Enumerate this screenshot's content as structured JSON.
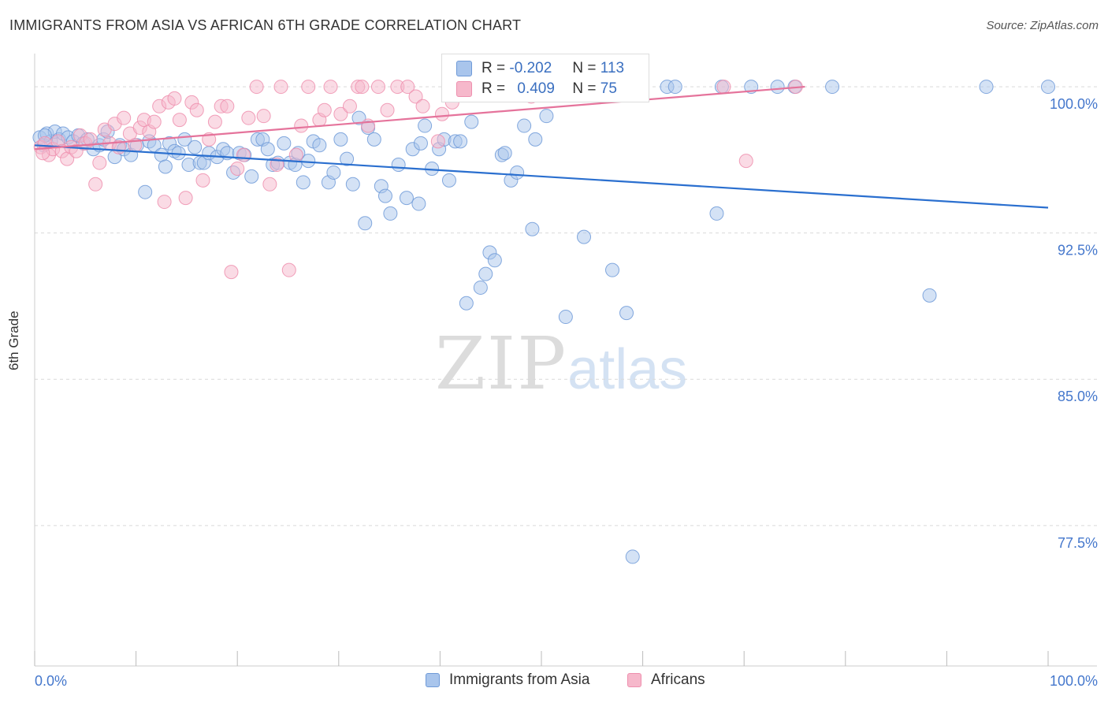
{
  "title": "IMMIGRANTS FROM ASIA VS AFRICAN 6TH GRADE CORRELATION CHART",
  "source": "Source: ZipAtlas.com",
  "watermark": {
    "zip": "ZIP",
    "atlas": "atlas"
  },
  "colors": {
    "asia_fill": "#a9c5ec",
    "asia_stroke": "#6f9ad8",
    "asia_line": "#2a6fcf",
    "african_fill": "#f6b8cb",
    "african_stroke": "#ee8fae",
    "african_line": "#e5739b",
    "tick_label": "#4477cc",
    "grid": "#d9d9d9"
  },
  "legend": {
    "stats": [
      {
        "r_label": "R =",
        "r_value": "-0.202",
        "n_label": "N =",
        "n_value": "113"
      },
      {
        "r_label": "R =",
        "r_value": "0.409",
        "n_label": "N =",
        "n_value": "75"
      }
    ],
    "bottom": [
      "Immigrants from Asia",
      "Africans"
    ]
  },
  "chart_data": {
    "type": "scatter",
    "title": "IMMIGRANTS FROM ASIA VS AFRICAN 6TH GRADE CORRELATION CHART",
    "xlabel": "",
    "ylabel": "6th Grade",
    "xlim": [
      0,
      100
    ],
    "ylim": [
      70.3,
      101.7
    ],
    "x_tick_labels": [
      "0.0%",
      "100.0%"
    ],
    "y_ticks": [
      100.0,
      92.5,
      85.0,
      77.5
    ],
    "y_tick_labels": [
      "100.0%",
      "92.5%",
      "85.0%",
      "77.5%"
    ],
    "grid": "horizontal dashed",
    "series": [
      {
        "name": "Immigrants from Asia",
        "trend": {
          "x": [
            0,
            100
          ],
          "y": [
            97.0,
            93.8
          ]
        },
        "points": [
          [
            0.5,
            97.4
          ],
          [
            0.9,
            97.0
          ],
          [
            1.2,
            97.6
          ],
          [
            1.6,
            97.2
          ],
          [
            2.0,
            97.7
          ],
          [
            2.4,
            97.3
          ],
          [
            2.8,
            97.6
          ],
          [
            3.3,
            97.4
          ],
          [
            3.8,
            97.2
          ],
          [
            4.3,
            97.5
          ],
          [
            4.8,
            97.1
          ],
          [
            5.2,
            97.3
          ],
          [
            5.8,
            96.8
          ],
          [
            6.4,
            97.0
          ],
          [
            6.8,
            97.3
          ],
          [
            7.2,
            97.7
          ],
          [
            7.9,
            96.4
          ],
          [
            8.4,
            97.0
          ],
          [
            8.8,
            96.8
          ],
          [
            9.5,
            96.5
          ],
          [
            10.1,
            97.0
          ],
          [
            10.9,
            94.6
          ],
          [
            11.3,
            97.2
          ],
          [
            11.8,
            97.0
          ],
          [
            12.5,
            96.5
          ],
          [
            12.9,
            95.9
          ],
          [
            13.3,
            97.1
          ],
          [
            13.8,
            96.7
          ],
          [
            14.2,
            96.6
          ],
          [
            14.8,
            97.3
          ],
          [
            15.2,
            96.0
          ],
          [
            15.8,
            96.9
          ],
          [
            16.3,
            96.1
          ],
          [
            16.7,
            96.1
          ],
          [
            17.2,
            96.6
          ],
          [
            18.0,
            96.4
          ],
          [
            18.6,
            96.8
          ],
          [
            19.0,
            96.6
          ],
          [
            19.6,
            95.6
          ],
          [
            20.2,
            96.6
          ],
          [
            20.7,
            96.5
          ],
          [
            21.4,
            95.4
          ],
          [
            22.0,
            97.3
          ],
          [
            22.5,
            97.3
          ],
          [
            23.0,
            96.8
          ],
          [
            23.5,
            96.0
          ],
          [
            24.0,
            96.1
          ],
          [
            24.6,
            97.1
          ],
          [
            25.2,
            96.1
          ],
          [
            25.7,
            96.0
          ],
          [
            26.5,
            95.1
          ],
          [
            27.0,
            96.2
          ],
          [
            27.5,
            97.2
          ],
          [
            28.1,
            97.0
          ],
          [
            29.0,
            95.1
          ],
          [
            29.5,
            95.6
          ],
          [
            30.2,
            97.3
          ],
          [
            30.8,
            96.3
          ],
          [
            31.4,
            95.0
          ],
          [
            32.0,
            98.4
          ],
          [
            32.6,
            93.0
          ],
          [
            32.9,
            97.9
          ],
          [
            33.5,
            97.3
          ],
          [
            34.2,
            94.9
          ],
          [
            34.6,
            94.4
          ],
          [
            35.1,
            93.5
          ],
          [
            35.9,
            96.0
          ],
          [
            36.7,
            94.3
          ],
          [
            37.3,
            96.8
          ],
          [
            37.9,
            94.0
          ],
          [
            38.1,
            97.1
          ],
          [
            38.5,
            98.0
          ],
          [
            39.2,
            95.8
          ],
          [
            39.9,
            96.8
          ],
          [
            40.4,
            97.3
          ],
          [
            40.9,
            95.2
          ],
          [
            41.5,
            97.2
          ],
          [
            42.0,
            97.2
          ],
          [
            42.6,
            88.9
          ],
          [
            43.1,
            98.2
          ],
          [
            44.0,
            89.7
          ],
          [
            44.5,
            90.4
          ],
          [
            44.9,
            91.5
          ],
          [
            45.4,
            91.1
          ],
          [
            46.1,
            96.5
          ],
          [
            46.4,
            96.6
          ],
          [
            47.0,
            95.2
          ],
          [
            47.6,
            95.6
          ],
          [
            48.3,
            98.0
          ],
          [
            49.1,
            92.7
          ],
          [
            49.4,
            97.3
          ],
          [
            50.5,
            98.5
          ],
          [
            52.1,
            99.9
          ],
          [
            52.4,
            88.2
          ],
          [
            53.9,
            99.9
          ],
          [
            54.2,
            92.3
          ],
          [
            56.3,
            99.9
          ],
          [
            57.0,
            90.6
          ],
          [
            58.4,
            88.4
          ],
          [
            59.0,
            75.9
          ],
          [
            62.4,
            100.0
          ],
          [
            63.2,
            100.0
          ],
          [
            67.3,
            93.5
          ],
          [
            67.8,
            100.0
          ],
          [
            70.7,
            100.0
          ],
          [
            73.3,
            100.0
          ],
          [
            75.0,
            100.0
          ],
          [
            78.7,
            100.0
          ],
          [
            88.3,
            89.3
          ],
          [
            93.9,
            100.0
          ],
          [
            100.0,
            100.0
          ],
          [
            1.0,
            97.5
          ],
          [
            26.0,
            96.6
          ]
        ]
      },
      {
        "name": "Africans",
        "trend": {
          "x": [
            0,
            76
          ],
          "y": [
            96.8,
            100.0
          ]
        },
        "points": [
          [
            0.6,
            96.9
          ],
          [
            1.0,
            97.1
          ],
          [
            1.4,
            96.5
          ],
          [
            1.8,
            96.8
          ],
          [
            2.3,
            97.2
          ],
          [
            2.7,
            96.7
          ],
          [
            3.2,
            96.3
          ],
          [
            3.6,
            96.9
          ],
          [
            4.1,
            96.7
          ],
          [
            4.5,
            97.5
          ],
          [
            5.0,
            97.1
          ],
          [
            5.5,
            97.3
          ],
          [
            6.0,
            95.0
          ],
          [
            6.4,
            96.1
          ],
          [
            6.9,
            97.8
          ],
          [
            7.4,
            97.1
          ],
          [
            7.9,
            98.1
          ],
          [
            8.3,
            96.9
          ],
          [
            8.8,
            98.4
          ],
          [
            9.4,
            97.6
          ],
          [
            9.9,
            97.0
          ],
          [
            10.4,
            97.9
          ],
          [
            10.8,
            98.3
          ],
          [
            11.3,
            97.7
          ],
          [
            11.8,
            98.2
          ],
          [
            12.3,
            99.0
          ],
          [
            12.8,
            94.1
          ],
          [
            13.2,
            99.2
          ],
          [
            13.8,
            99.4
          ],
          [
            14.3,
            98.3
          ],
          [
            14.9,
            94.3
          ],
          [
            15.5,
            99.2
          ],
          [
            16.0,
            98.8
          ],
          [
            16.6,
            95.2
          ],
          [
            17.2,
            97.3
          ],
          [
            17.8,
            98.2
          ],
          [
            18.4,
            99.0
          ],
          [
            19.0,
            99.0
          ],
          [
            19.4,
            90.5
          ],
          [
            20.0,
            95.8
          ],
          [
            20.6,
            96.5
          ],
          [
            21.1,
            98.4
          ],
          [
            21.9,
            100.0
          ],
          [
            22.6,
            98.5
          ],
          [
            23.2,
            95.0
          ],
          [
            23.9,
            96.0
          ],
          [
            24.3,
            100.0
          ],
          [
            25.1,
            90.6
          ],
          [
            25.8,
            96.5
          ],
          [
            26.3,
            98.0
          ],
          [
            27.0,
            100.0
          ],
          [
            28.1,
            98.3
          ],
          [
            28.6,
            98.8
          ],
          [
            29.2,
            100.0
          ],
          [
            30.2,
            98.6
          ],
          [
            31.1,
            99.0
          ],
          [
            31.9,
            100.0
          ],
          [
            32.3,
            100.0
          ],
          [
            32.9,
            98.0
          ],
          [
            33.9,
            100.0
          ],
          [
            34.8,
            98.8
          ],
          [
            35.8,
            100.0
          ],
          [
            36.8,
            100.0
          ],
          [
            37.6,
            99.5
          ],
          [
            38.3,
            99.0
          ],
          [
            39.8,
            97.2
          ],
          [
            40.2,
            98.6
          ],
          [
            41.2,
            99.2
          ],
          [
            46.3,
            100.0
          ],
          [
            47.3,
            100.0
          ],
          [
            49.0,
            99.5
          ],
          [
            68.0,
            100.0
          ],
          [
            70.2,
            96.2
          ],
          [
            75.1,
            100.0
          ],
          [
            0.8,
            96.6
          ]
        ]
      }
    ]
  }
}
